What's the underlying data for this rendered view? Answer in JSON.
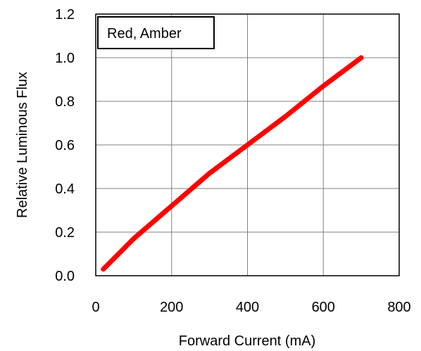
{
  "chart_data": {
    "type": "line",
    "xlabel": "Forward Current (mA)",
    "ylabel": "Relative Luminous Flux",
    "xlim": [
      0,
      800
    ],
    "ylim": [
      0,
      1.2
    ],
    "x_ticks": [
      "0",
      "200",
      "400",
      "600",
      "800"
    ],
    "y_ticks": [
      "0.0",
      "0.2",
      "0.4",
      "0.6",
      "0.8",
      "1.0",
      "1.2"
    ],
    "grid": true,
    "legend": {
      "text": "Red, Amber",
      "placement": "top-left"
    },
    "series": [
      {
        "color": "#ff0000",
        "x": [
          20,
          100,
          200,
          300,
          400,
          500,
          600,
          700
        ],
        "y": [
          0.03,
          0.17,
          0.32,
          0.47,
          0.6,
          0.73,
          0.87,
          1.0
        ]
      }
    ]
  }
}
